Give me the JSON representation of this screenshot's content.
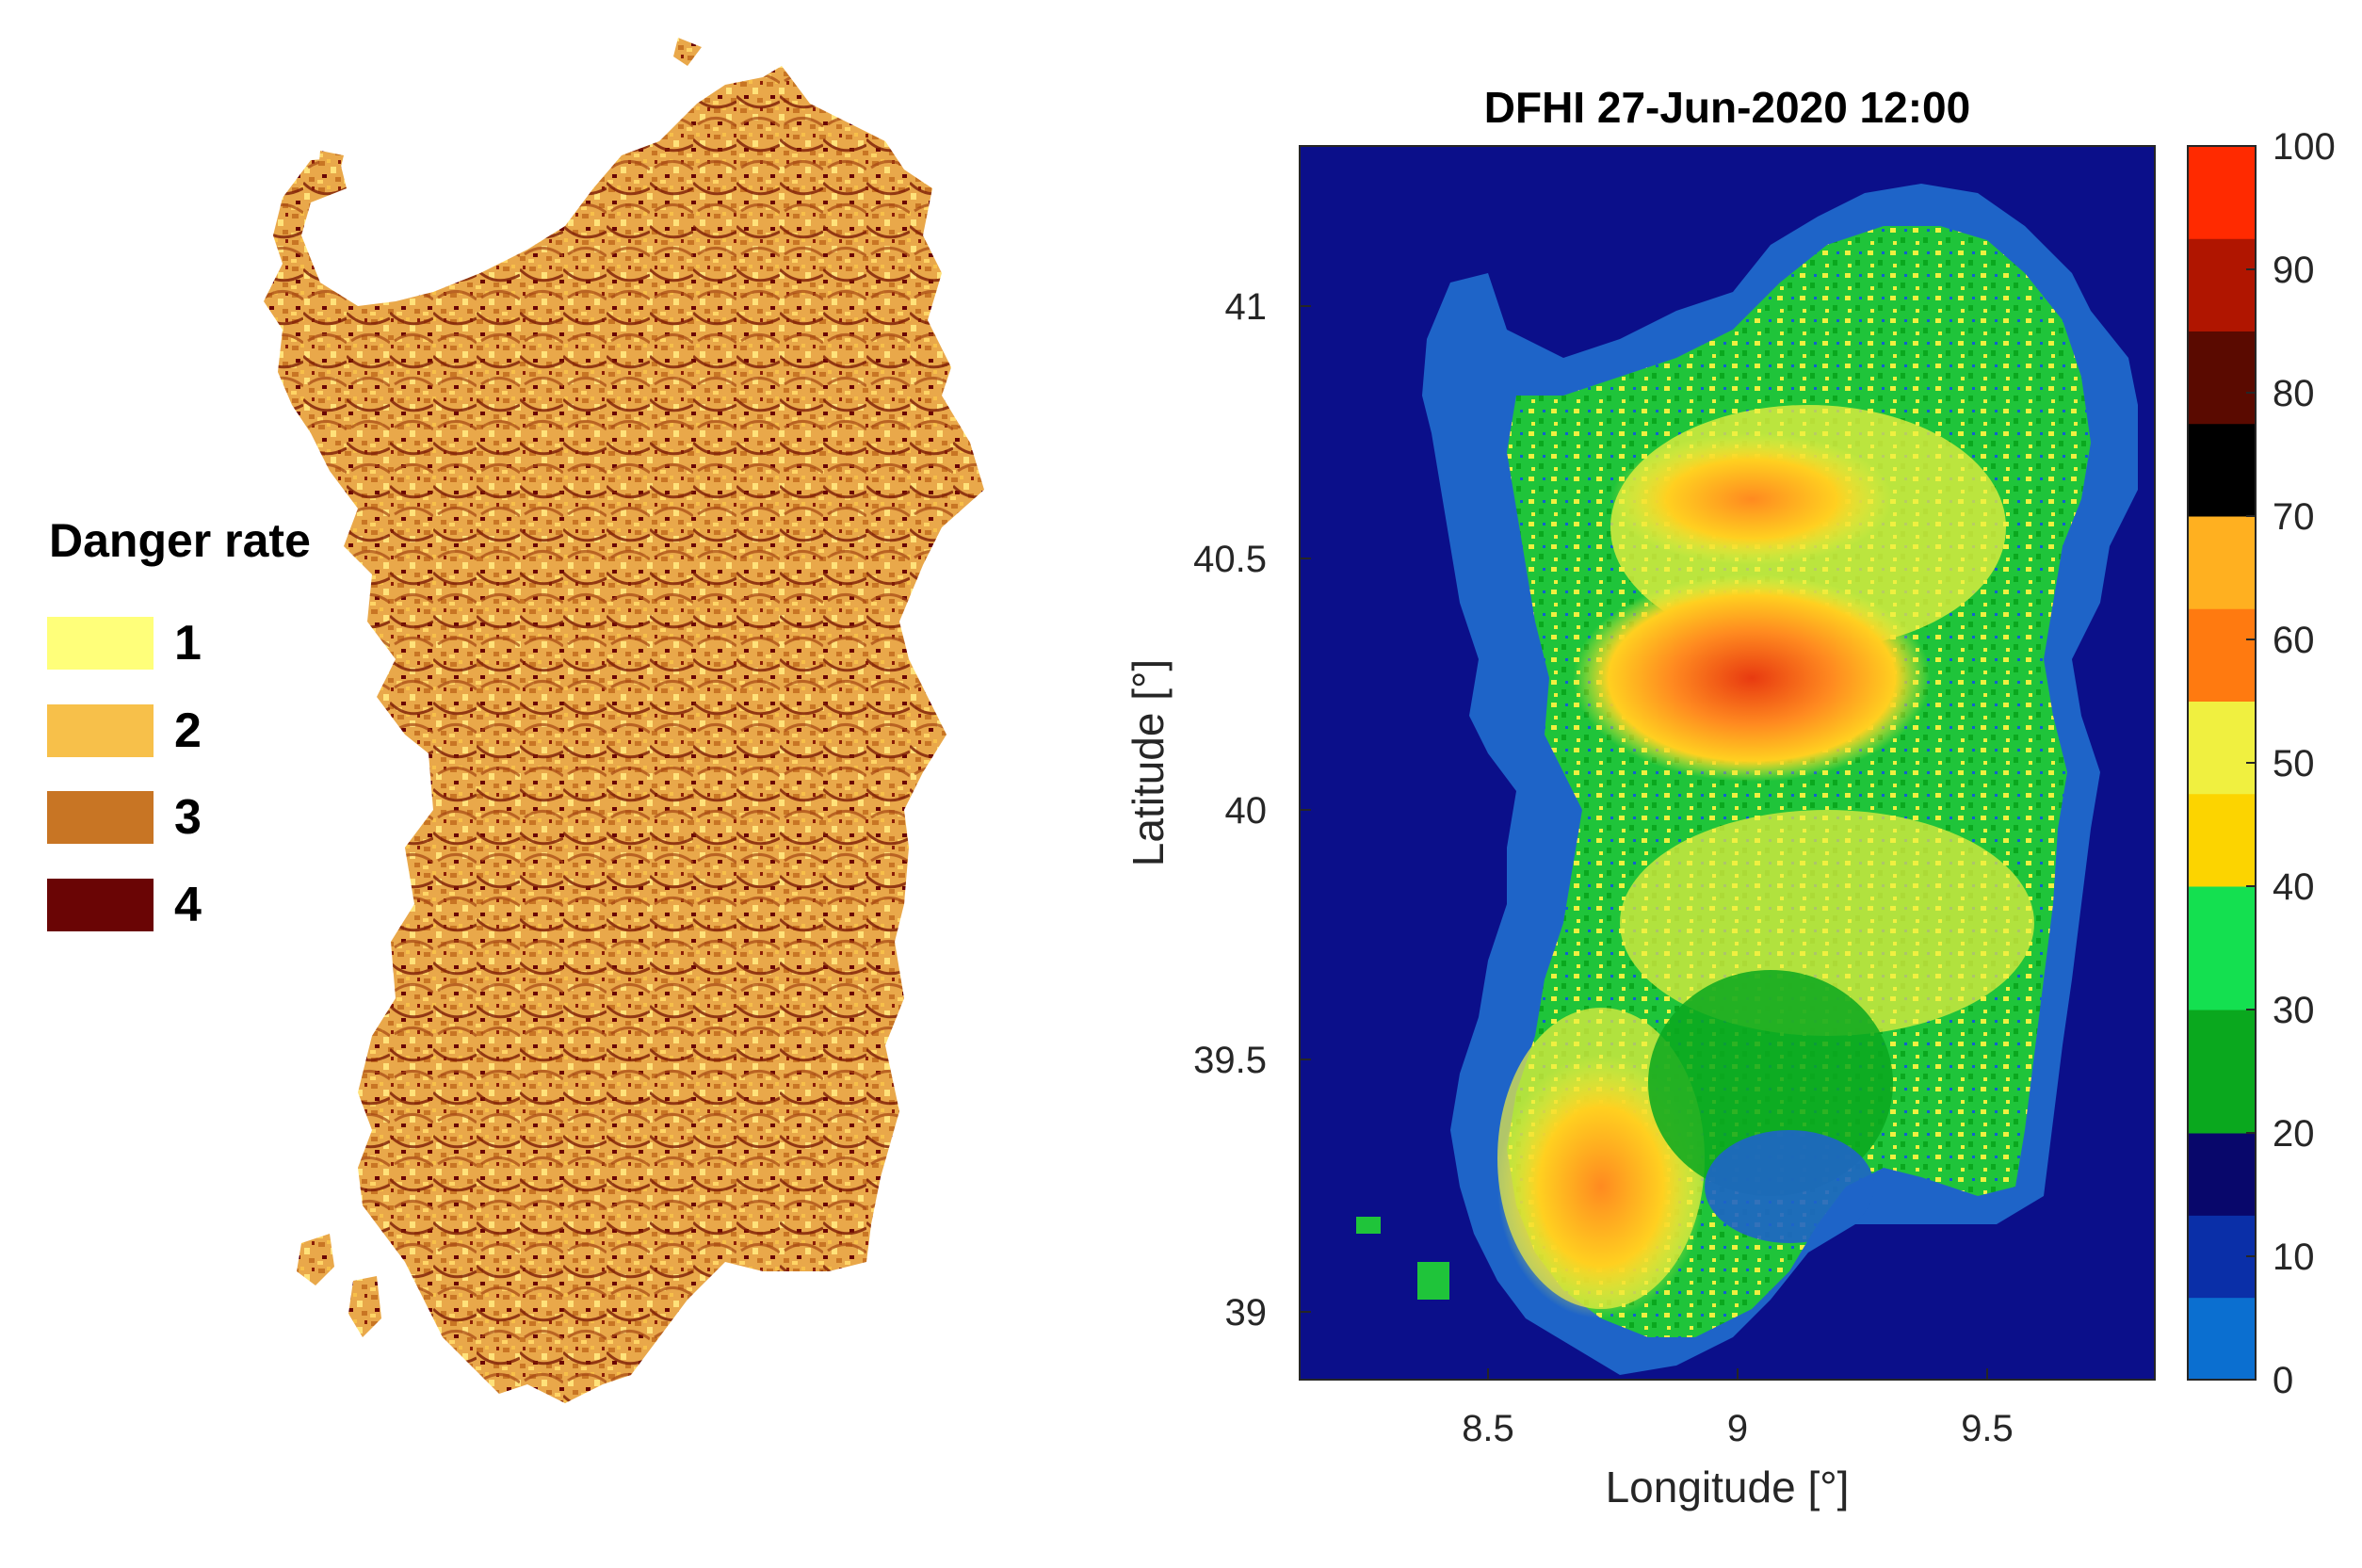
{
  "left_map": {
    "legend_title": "Danger rate",
    "classes": [
      {
        "label": "1",
        "color": "#ffff7a"
      },
      {
        "label": "2",
        "color": "#f7c04a"
      },
      {
        "label": "3",
        "color": "#c87524"
      },
      {
        "label": "4",
        "color": "#6a0505"
      }
    ]
  },
  "right_map": {
    "title": "DFHI 27-Jun-2020 12:00",
    "x_label": "Longitude [°]",
    "y_label": "Latitude [°]",
    "x_ticks": [
      "8.5",
      "9",
      "9.5"
    ],
    "y_ticks": [
      "41",
      "40.5",
      "40",
      "39.5",
      "39"
    ],
    "colorbar_ticks": [
      "0",
      "10",
      "20",
      "30",
      "40",
      "50",
      "60",
      "70",
      "80",
      "90",
      "100"
    ],
    "colorbar_bands": [
      {
        "from": 0,
        "to": 20,
        "colors": [
          "#08076b",
          "#0a2fa8",
          "#0b6fd0"
        ]
      },
      {
        "from": 20,
        "to": 40,
        "colors": [
          "#14e050",
          "#0aa81e"
        ]
      },
      {
        "from": 40,
        "to": 55,
        "colors": [
          "#f0f040",
          "#fcd400"
        ]
      },
      {
        "from": 55,
        "to": 70,
        "colors": [
          "#ffb020",
          "#ff7a10"
        ]
      },
      {
        "from": 70,
        "to": 100,
        "colors": [
          "#ff2a00",
          "#b01500",
          "#5a0a00",
          "#000000"
        ]
      }
    ],
    "background_color": "#0b0f8a"
  }
}
